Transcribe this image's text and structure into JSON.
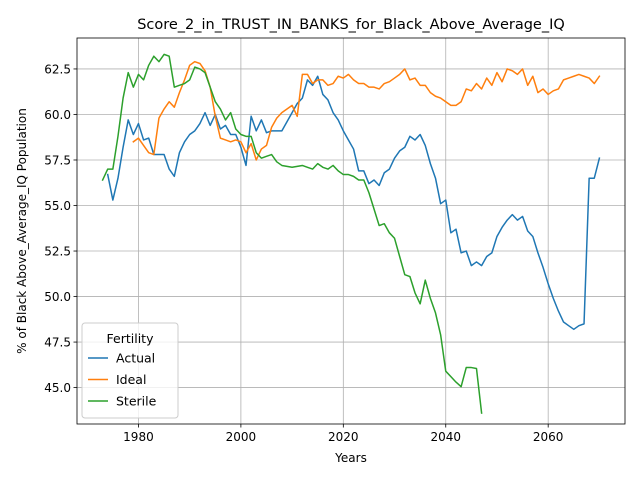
{
  "chart_data": {
    "type": "line",
    "title": "Score_2_in_TRUST_IN_BANKS_for_Black_Above_Average_IQ",
    "xlabel": "Years",
    "ylabel": "% of Black Above_Average_IQ Population",
    "xlim": [
      1968,
      2075
    ],
    "ylim": [
      43.0,
      64.2
    ],
    "xticks": [
      1980,
      2000,
      2020,
      2040,
      2060
    ],
    "yticks": [
      45.0,
      47.5,
      50.0,
      52.5,
      55.0,
      57.5,
      60.0,
      62.5
    ],
    "grid": true,
    "legend": {
      "title": "Fertility",
      "placement": "lower-left"
    },
    "series": [
      {
        "name": "Actual",
        "color": "#1f77b4",
        "points": [
          [
            1974,
            56.7
          ],
          [
            1975,
            55.3
          ],
          [
            1976,
            56.5
          ],
          [
            1977,
            58.2
          ],
          [
            1978,
            59.7
          ],
          [
            1979,
            58.9
          ],
          [
            1980,
            59.5
          ],
          [
            1981,
            58.6
          ],
          [
            1982,
            58.7
          ],
          [
            1983,
            57.8
          ],
          [
            1984,
            57.8
          ],
          [
            1985,
            57.8
          ],
          [
            1986,
            57.0
          ],
          [
            1987,
            56.6
          ],
          [
            1988,
            57.9
          ],
          [
            1989,
            58.5
          ],
          [
            1990,
            58.9
          ],
          [
            1991,
            59.1
          ],
          [
            1992,
            59.5
          ],
          [
            1993,
            60.1
          ],
          [
            1994,
            59.4
          ],
          [
            1995,
            60.0
          ],
          [
            1996,
            59.2
          ],
          [
            1997,
            59.4
          ],
          [
            1998,
            58.9
          ],
          [
            1999,
            58.9
          ],
          [
            2000,
            58.2
          ],
          [
            2001,
            57.2
          ],
          [
            2002,
            59.9
          ],
          [
            2003,
            59.1
          ],
          [
            2004,
            59.7
          ],
          [
            2005,
            59.0
          ],
          [
            2006,
            59.1
          ],
          [
            2007,
            59.1
          ],
          [
            2008,
            59.1
          ],
          [
            2009,
            59.6
          ],
          [
            2010,
            60.1
          ],
          [
            2011,
            60.6
          ],
          [
            2012,
            60.9
          ],
          [
            2013,
            61.9
          ],
          [
            2014,
            61.6
          ],
          [
            2015,
            62.1
          ],
          [
            2016,
            61.1
          ],
          [
            2017,
            60.8
          ],
          [
            2018,
            60.1
          ],
          [
            2019,
            59.7
          ],
          [
            2020,
            59.1
          ],
          [
            2021,
            58.6
          ],
          [
            2022,
            58.1
          ],
          [
            2023,
            56.9
          ],
          [
            2024,
            56.9
          ],
          [
            2025,
            56.2
          ],
          [
            2026,
            56.4
          ],
          [
            2027,
            56.1
          ],
          [
            2028,
            56.8
          ],
          [
            2029,
            57.0
          ],
          [
            2030,
            57.6
          ],
          [
            2031,
            58.0
          ],
          [
            2032,
            58.2
          ],
          [
            2033,
            58.8
          ],
          [
            2034,
            58.6
          ],
          [
            2035,
            58.9
          ],
          [
            2036,
            58.3
          ],
          [
            2037,
            57.3
          ],
          [
            2038,
            56.5
          ],
          [
            2039,
            55.1
          ],
          [
            2040,
            55.3
          ],
          [
            2041,
            53.5
          ],
          [
            2042,
            53.7
          ],
          [
            2043,
            52.4
          ],
          [
            2044,
            52.5
          ],
          [
            2045,
            51.7
          ],
          [
            2046,
            51.9
          ],
          [
            2047,
            51.7
          ],
          [
            2048,
            52.2
          ],
          [
            2049,
            52.4
          ],
          [
            2050,
            53.3
          ],
          [
            2051,
            53.8
          ],
          [
            2052,
            54.2
          ],
          [
            2053,
            54.5
          ],
          [
            2054,
            54.2
          ],
          [
            2055,
            54.4
          ],
          [
            2056,
            53.6
          ],
          [
            2057,
            53.3
          ],
          [
            2058,
            52.4
          ],
          [
            2059,
            51.6
          ],
          [
            2060,
            50.7
          ],
          [
            2061,
            49.9
          ],
          [
            2062,
            49.2
          ],
          [
            2063,
            48.6
          ],
          [
            2064,
            48.4
          ],
          [
            2065,
            48.2
          ],
          [
            2066,
            48.4
          ],
          [
            2067,
            48.5
          ],
          [
            2068,
            56.5
          ],
          [
            2069,
            56.5
          ],
          [
            2070,
            57.6
          ]
        ]
      },
      {
        "name": "Ideal",
        "color": "#ff7f0e",
        "points": [
          [
            1979,
            58.5
          ],
          [
            1980,
            58.7
          ],
          [
            1981,
            58.3
          ],
          [
            1982,
            57.9
          ],
          [
            1983,
            57.8
          ],
          [
            1984,
            59.8
          ],
          [
            1985,
            60.3
          ],
          [
            1986,
            60.7
          ],
          [
            1987,
            60.4
          ],
          [
            1988,
            61.2
          ],
          [
            1989,
            61.9
          ],
          [
            1990,
            62.7
          ],
          [
            1991,
            62.9
          ],
          [
            1992,
            62.8
          ],
          [
            1993,
            62.4
          ],
          [
            1994,
            61.5
          ],
          [
            1995,
            59.9
          ],
          [
            1996,
            58.7
          ],
          [
            1997,
            58.6
          ],
          [
            1998,
            58.5
          ],
          [
            1999,
            58.6
          ],
          [
            2000,
            58.5
          ],
          [
            2001,
            57.9
          ],
          [
            2002,
            58.4
          ],
          [
            2003,
            57.5
          ],
          [
            2004,
            58.1
          ],
          [
            2005,
            58.3
          ],
          [
            2006,
            59.3
          ],
          [
            2007,
            59.8
          ],
          [
            2008,
            60.1
          ],
          [
            2009,
            60.3
          ],
          [
            2010,
            60.5
          ],
          [
            2011,
            59.9
          ],
          [
            2012,
            62.2
          ],
          [
            2013,
            62.2
          ],
          [
            2014,
            61.7
          ],
          [
            2015,
            61.9
          ],
          [
            2016,
            61.9
          ],
          [
            2017,
            61.6
          ],
          [
            2018,
            61.7
          ],
          [
            2019,
            62.1
          ],
          [
            2020,
            62.0
          ],
          [
            2021,
            62.2
          ],
          [
            2022,
            61.9
          ],
          [
            2023,
            61.7
          ],
          [
            2024,
            61.7
          ],
          [
            2025,
            61.5
          ],
          [
            2026,
            61.5
          ],
          [
            2027,
            61.4
          ],
          [
            2028,
            61.7
          ],
          [
            2029,
            61.8
          ],
          [
            2030,
            62.0
          ],
          [
            2031,
            62.2
          ],
          [
            2032,
            62.5
          ],
          [
            2033,
            61.9
          ],
          [
            2034,
            62.0
          ],
          [
            2035,
            61.6
          ],
          [
            2036,
            61.6
          ],
          [
            2037,
            61.2
          ],
          [
            2038,
            61.0
          ],
          [
            2039,
            60.9
          ],
          [
            2040,
            60.7
          ],
          [
            2041,
            60.5
          ],
          [
            2042,
            60.5
          ],
          [
            2043,
            60.7
          ],
          [
            2044,
            61.4
          ],
          [
            2045,
            61.3
          ],
          [
            2046,
            61.7
          ],
          [
            2047,
            61.4
          ],
          [
            2048,
            62.0
          ],
          [
            2049,
            61.6
          ],
          [
            2050,
            62.3
          ],
          [
            2051,
            61.8
          ],
          [
            2052,
            62.5
          ],
          [
            2053,
            62.4
          ],
          [
            2054,
            62.2
          ],
          [
            2055,
            62.5
          ],
          [
            2056,
            61.6
          ],
          [
            2057,
            62.1
          ],
          [
            2058,
            61.2
          ],
          [
            2059,
            61.4
          ],
          [
            2060,
            61.1
          ],
          [
            2061,
            61.3
          ],
          [
            2062,
            61.4
          ],
          [
            2063,
            61.9
          ],
          [
            2064,
            62.0
          ],
          [
            2065,
            62.1
          ],
          [
            2066,
            62.2
          ],
          [
            2067,
            62.1
          ],
          [
            2068,
            62.0
          ],
          [
            2069,
            61.7
          ],
          [
            2070,
            62.1
          ]
        ]
      },
      {
        "name": "Sterile",
        "color": "#2ca02c",
        "points": [
          [
            1973,
            56.4
          ],
          [
            1974,
            57.0
          ],
          [
            1975,
            57.0
          ],
          [
            1976,
            58.8
          ],
          [
            1977,
            60.9
          ],
          [
            1978,
            62.3
          ],
          [
            1979,
            61.5
          ],
          [
            1980,
            62.2
          ],
          [
            1981,
            61.9
          ],
          [
            1982,
            62.7
          ],
          [
            1983,
            63.2
          ],
          [
            1984,
            62.9
          ],
          [
            1985,
            63.3
          ],
          [
            1986,
            63.2
          ],
          [
            1987,
            61.5
          ],
          [
            1988,
            61.6
          ],
          [
            1989,
            61.7
          ],
          [
            1990,
            61.9
          ],
          [
            1991,
            62.6
          ],
          [
            1992,
            62.5
          ],
          [
            1993,
            62.3
          ],
          [
            1994,
            61.5
          ],
          [
            1995,
            60.7
          ],
          [
            1996,
            60.3
          ],
          [
            1997,
            59.7
          ],
          [
            1998,
            60.1
          ],
          [
            1999,
            59.2
          ],
          [
            2000,
            58.9
          ],
          [
            2001,
            58.8
          ],
          [
            2002,
            58.8
          ],
          [
            2003,
            57.9
          ],
          [
            2004,
            57.6
          ],
          [
            2005,
            57.7
          ],
          [
            2006,
            57.8
          ],
          [
            2007,
            57.4
          ],
          [
            2008,
            57.2
          ],
          [
            2009,
            57.15
          ],
          [
            2010,
            57.1
          ],
          [
            2011,
            57.15
          ],
          [
            2012,
            57.2
          ],
          [
            2013,
            57.1
          ],
          [
            2014,
            57.0
          ],
          [
            2015,
            57.3
          ],
          [
            2016,
            57.1
          ],
          [
            2017,
            57.0
          ],
          [
            2018,
            57.2
          ],
          [
            2019,
            56.9
          ],
          [
            2020,
            56.7
          ],
          [
            2021,
            56.7
          ],
          [
            2022,
            56.6
          ],
          [
            2023,
            56.4
          ],
          [
            2024,
            56.4
          ],
          [
            2025,
            55.7
          ],
          [
            2026,
            54.8
          ],
          [
            2027,
            53.9
          ],
          [
            2028,
            54.0
          ],
          [
            2029,
            53.5
          ],
          [
            2030,
            53.2
          ],
          [
            2031,
            52.2
          ],
          [
            2032,
            51.2
          ],
          [
            2033,
            51.1
          ],
          [
            2034,
            50.2
          ],
          [
            2035,
            49.6
          ],
          [
            2036,
            50.9
          ],
          [
            2037,
            49.9
          ],
          [
            2038,
            49.1
          ],
          [
            2039,
            47.9
          ],
          [
            2040,
            45.9
          ],
          [
            2041,
            45.6
          ],
          [
            2042,
            45.3
          ],
          [
            2043,
            45.05
          ],
          [
            2044,
            46.1
          ],
          [
            2045,
            46.1
          ],
          [
            2046,
            46.05
          ],
          [
            2047,
            43.6
          ]
        ]
      }
    ]
  }
}
